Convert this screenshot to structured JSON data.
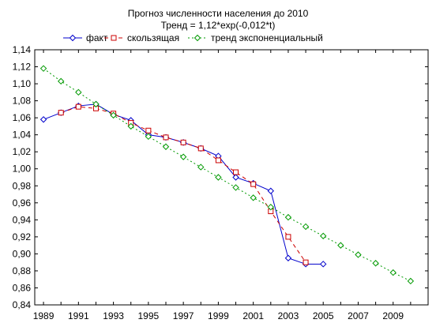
{
  "chart_data": {
    "type": "line",
    "title": "Прогноз численности населения до 2010",
    "subtitle": "Тренд = 1,12*exp(-0,012*t)",
    "xlabel": "",
    "ylabel": "",
    "xlim": [
      1988.5,
      2011.0
    ],
    "ylim": [
      0.84,
      1.14
    ],
    "y_tick_step": 0.02,
    "y_ticks": [
      "0,84",
      "0,86",
      "0,88",
      "0,90",
      "0,92",
      "0,94",
      "0,96",
      "0,98",
      "1,00",
      "1,02",
      "1,04",
      "1,06",
      "1,08",
      "1,10",
      "1,12",
      "1,14"
    ],
    "x_ticks": [
      "1989",
      "1991",
      "1993",
      "1995",
      "1997",
      "1999",
      "2001",
      "2003",
      "2005",
      "2007",
      "2009"
    ],
    "grid": false,
    "legend_position": "top",
    "series": [
      {
        "name": "факт",
        "color": "#0000cc",
        "line_style": "solid",
        "marker": "diamond",
        "x": [
          1989,
          1990,
          1991,
          1992,
          1993,
          1994,
          1995,
          1996,
          1997,
          1998,
          1999,
          2000,
          2001,
          2002,
          2003,
          2004,
          2005
        ],
        "y": [
          1.058,
          1.066,
          1.074,
          1.076,
          1.064,
          1.057,
          1.04,
          1.037,
          1.031,
          1.024,
          1.015,
          0.99,
          0.983,
          0.974,
          0.895,
          0.888,
          0.888
        ]
      },
      {
        "name": "скользящая",
        "color": "#cc0000",
        "line_style": "dashed",
        "marker": "square",
        "x": [
          1990,
          1991,
          1992,
          1993,
          1994,
          1995,
          1996,
          1997,
          1998,
          1999,
          2000,
          2001,
          2002,
          2003,
          2004
        ],
        "y": [
          1.066,
          1.073,
          1.071,
          1.065,
          1.054,
          1.045,
          1.037,
          1.031,
          1.024,
          1.01,
          0.996,
          0.982,
          0.95,
          0.92,
          0.89
        ]
      },
      {
        "name": "тренд экспоненциальный",
        "color": "#009900",
        "line_style": "dotted",
        "marker": "diamond",
        "x": [
          1989,
          1990,
          1991,
          1992,
          1993,
          1994,
          1995,
          1996,
          1997,
          1998,
          1999,
          2000,
          2001,
          2002,
          2003,
          2004,
          2005,
          2006,
          2007,
          2008,
          2009,
          2010
        ],
        "y": [
          1.118,
          1.103,
          1.09,
          1.076,
          1.063,
          1.05,
          1.038,
          1.026,
          1.014,
          1.002,
          0.99,
          0.978,
          0.966,
          0.955,
          0.943,
          0.932,
          0.921,
          0.91,
          0.899,
          0.889,
          0.878,
          0.868
        ]
      }
    ]
  }
}
